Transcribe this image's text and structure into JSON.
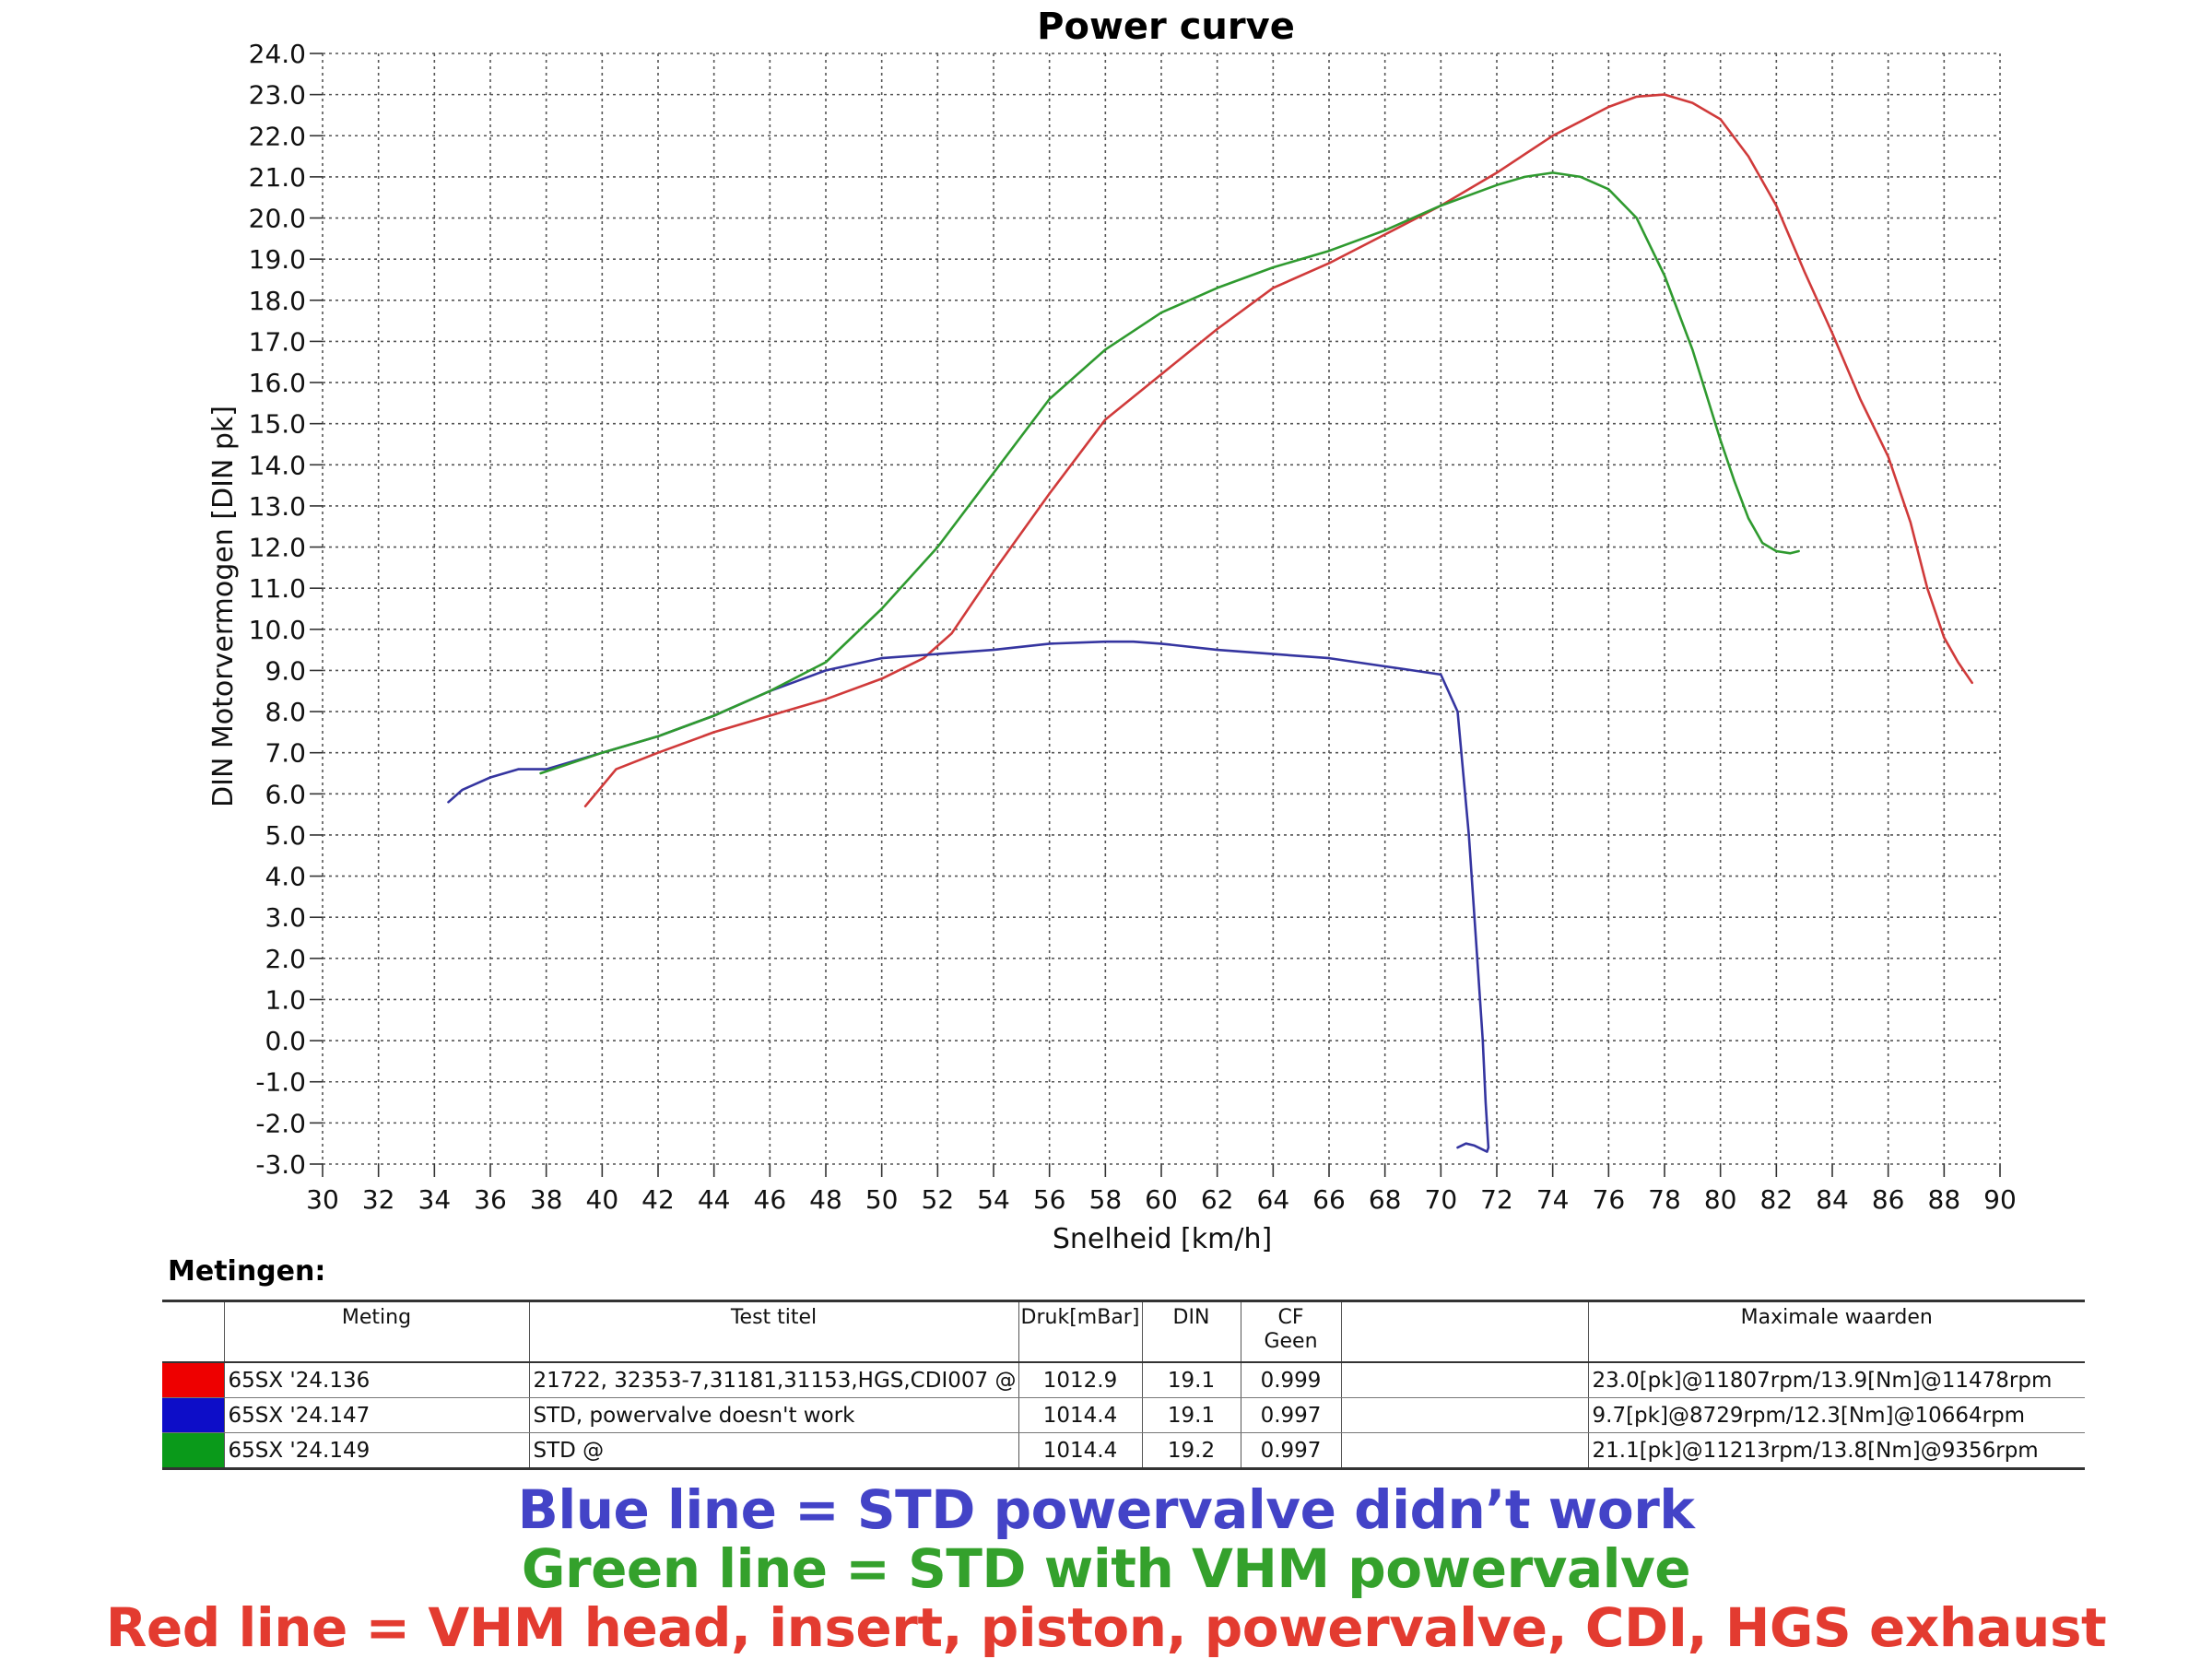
{
  "chart_data": {
    "type": "line",
    "title": "Power curve",
    "xlabel": "Snelheid [km/h]",
    "ylabel": "DIN Motorvermogen [DIN pk]",
    "xlim": [
      30,
      90
    ],
    "ylim": [
      -3,
      24
    ],
    "xticks": [
      "30",
      "32",
      "34",
      "36",
      "38",
      "40",
      "42",
      "44",
      "46",
      "48",
      "50",
      "52",
      "54",
      "56",
      "58",
      "60",
      "62",
      "64",
      "66",
      "68",
      "70",
      "72",
      "74",
      "76",
      "78",
      "80",
      "82",
      "84",
      "86",
      "88",
      "90"
    ],
    "yticks": [
      "24.0",
      "23.0",
      "22.0",
      "21.0",
      "20.0",
      "19.0",
      "18.0",
      "17.0",
      "16.0",
      "15.0",
      "14.0",
      "13.0",
      "12.0",
      "11.0",
      "10.0",
      "9.0",
      "8.0",
      "7.0",
      "6.0",
      "5.0",
      "4.0",
      "3.0",
      "2.0",
      "1.0",
      "0.0",
      "-1.0",
      "-2.0",
      "-3.0"
    ],
    "grid": true,
    "series": [
      {
        "color": "#d03a3a",
        "x": [
          39.4,
          40.5,
          42,
          44,
          46,
          48,
          50,
          51.5,
          52.5,
          54,
          56,
          58,
          60,
          62,
          64,
          66,
          68,
          70,
          72,
          74,
          76,
          77,
          78,
          79,
          80,
          81,
          82,
          83,
          84,
          85,
          86,
          86.8,
          87.4,
          88,
          88.5,
          89
        ],
        "y": [
          5.7,
          6.6,
          7.0,
          7.5,
          7.9,
          8.3,
          8.8,
          9.3,
          9.9,
          11.4,
          13.3,
          15.1,
          16.2,
          17.3,
          18.3,
          18.9,
          19.6,
          20.3,
          21.1,
          22.0,
          22.7,
          22.95,
          23.0,
          22.8,
          22.4,
          21.5,
          20.3,
          18.7,
          17.2,
          15.6,
          14.2,
          12.6,
          11.0,
          9.8,
          9.2,
          8.7
        ]
      },
      {
        "color": "#3535a0",
        "x": [
          34.5,
          35,
          36,
          37,
          38,
          40,
          42,
          44,
          46,
          48,
          50,
          52,
          54,
          56,
          58,
          59,
          60,
          62,
          64,
          66,
          68,
          69,
          70,
          70.6,
          71.0,
          71.3,
          71.5,
          71.6,
          71.7,
          71.65,
          71.2,
          70.9,
          70.6
        ],
        "y": [
          5.8,
          6.1,
          6.4,
          6.6,
          6.6,
          7.0,
          7.4,
          7.9,
          8.5,
          9.0,
          9.3,
          9.4,
          9.5,
          9.65,
          9.7,
          9.7,
          9.65,
          9.5,
          9.4,
          9.3,
          9.1,
          9.0,
          8.9,
          8.0,
          5.0,
          2.0,
          0.0,
          -1.5,
          -2.6,
          -2.7,
          -2.55,
          -2.5,
          -2.6
        ]
      },
      {
        "color": "#2f9a2f",
        "x": [
          37.8,
          40,
          42,
          44,
          46,
          48,
          50,
          52,
          54,
          56,
          58,
          60,
          62,
          64,
          66,
          68,
          70,
          72,
          73,
          74,
          75,
          76,
          77,
          78,
          79,
          80,
          80.5,
          81,
          81.5,
          82,
          82.5,
          82.8
        ],
        "y": [
          6.5,
          7.0,
          7.4,
          7.9,
          8.5,
          9.2,
          10.5,
          12.0,
          13.8,
          15.6,
          16.8,
          17.7,
          18.3,
          18.8,
          19.2,
          19.7,
          20.3,
          20.8,
          21.0,
          21.1,
          21.0,
          20.7,
          20.0,
          18.6,
          16.8,
          14.6,
          13.6,
          12.7,
          12.1,
          11.9,
          11.85,
          11.9
        ]
      }
    ]
  },
  "table": {
    "heading": "Metingen:",
    "columns": [
      "",
      "Meting",
      "Test titel",
      "Druk[mBar]",
      "DIN",
      "CF\nGeen",
      "",
      "Maximale waarden"
    ],
    "rows": [
      {
        "color": "#ee0000",
        "meting": "65SX '24.136",
        "titel": "21722, 32353-7,31181,31153,HGS,CDI007",
        "at": "@",
        "druk": "1012.9",
        "din": "19.1",
        "cf": "0.999",
        "max": "23.0[pk]@11807rpm/13.9[Nm]@11478rpm"
      },
      {
        "color": "#0d0dc8",
        "meting": "65SX '24.147",
        "titel": "STD, powervalve doesn't work",
        "at": "",
        "druk": "1014.4",
        "din": "19.1",
        "cf": "0.997",
        "max": "9.7[pk]@8729rpm/12.3[Nm]@10664rpm"
      },
      {
        "color": "#0a9a1a",
        "meting": "65SX '24.149",
        "titel": "STD   @",
        "at": "",
        "druk": "1014.4",
        "din": "19.2",
        "cf": "0.997",
        "max": "21.1[pk]@11213rpm/13.8[Nm]@9356rpm"
      }
    ]
  },
  "legend": {
    "blue": "Blue line = STD powervalve didn’t work",
    "green": "Green line = STD with VHM powervalve",
    "red": "Red line = VHM head, insert, piston, powervalve, CDI, HGS exhaust",
    "blue_color": "#4343c7",
    "green_color": "#34a12c",
    "red_color": "#e33b30"
  }
}
